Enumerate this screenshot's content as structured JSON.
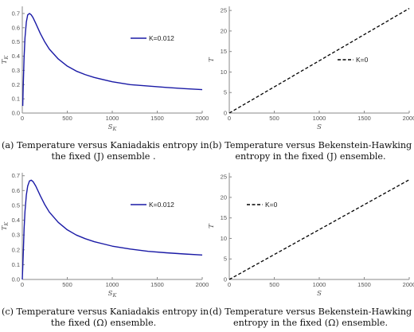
{
  "chart_data": [
    {
      "type": "line",
      "panel": "a",
      "xlabel": "S_K",
      "ylabel": "T_K",
      "xlim": [
        0,
        2000
      ],
      "ylim": [
        0,
        0.75
      ],
      "xticks": [
        0,
        500,
        1000,
        1500,
        2000
      ],
      "yticks": [
        0.0,
        0.1,
        0.2,
        0.3,
        0.4,
        0.5,
        0.6,
        0.7
      ],
      "ytick_labels": [
        "0.0",
        "0.1",
        "0.2",
        "0.3",
        "0.4",
        "0.5",
        "0.6",
        "0.7"
      ],
      "legend": "right",
      "series": [
        {
          "name": "K=0.012",
          "color": "#1a1aa6",
          "style": "solid",
          "x": [
            5,
            10,
            20,
            30,
            45,
            60,
            80,
            100,
            120,
            150,
            200,
            250,
            300,
            400,
            500,
            600,
            700,
            800,
            1000,
            1200,
            1400,
            1600,
            1800,
            2000
          ],
          "y": [
            0.05,
            0.18,
            0.39,
            0.53,
            0.64,
            0.69,
            0.7,
            0.69,
            0.67,
            0.63,
            0.56,
            0.5,
            0.45,
            0.38,
            0.33,
            0.295,
            0.27,
            0.25,
            0.22,
            0.2,
            0.19,
            0.18,
            0.172,
            0.165
          ]
        }
      ]
    },
    {
      "type": "line",
      "panel": "b",
      "xlabel": "S",
      "ylabel": "T",
      "xlim": [
        0,
        2000
      ],
      "ylim": [
        0,
        26
      ],
      "xticks": [
        0,
        500,
        1000,
        1500,
        2000
      ],
      "yticks": [
        0,
        5,
        10,
        15,
        20,
        25
      ],
      "ytick_labels": [
        "0",
        "5",
        "10",
        "15",
        "20",
        "25"
      ],
      "legend": "center-right",
      "series": [
        {
          "name": "K=0",
          "color": "#000000",
          "style": "dashed",
          "x": [
            0,
            2000
          ],
          "y": [
            0,
            25.5
          ]
        }
      ]
    },
    {
      "type": "line",
      "panel": "c",
      "xlabel": "S_K",
      "ylabel": "T_K",
      "xlim": [
        0,
        2000
      ],
      "ylim": [
        0,
        0.72
      ],
      "xticks": [
        0,
        500,
        1000,
        1500,
        2000
      ],
      "yticks": [
        0.0,
        0.1,
        0.2,
        0.3,
        0.4,
        0.5,
        0.6,
        0.7
      ],
      "ytick_labels": [
        "0.0",
        "0.1",
        "0.2",
        "0.3",
        "0.4",
        "0.5",
        "0.6",
        "0.7"
      ],
      "legend": "right",
      "series": [
        {
          "name": "K=0.012",
          "color": "#1a1aa6",
          "style": "solid",
          "x": [
            0,
            10,
            20,
            30,
            45,
            60,
            80,
            100,
            120,
            150,
            200,
            250,
            300,
            400,
            500,
            600,
            700,
            800,
            1000,
            1200,
            1400,
            1600,
            1800,
            2000
          ],
          "y": [
            0.0,
            0.16,
            0.34,
            0.46,
            0.57,
            0.63,
            0.665,
            0.67,
            0.66,
            0.63,
            0.565,
            0.505,
            0.455,
            0.385,
            0.335,
            0.3,
            0.275,
            0.255,
            0.225,
            0.205,
            0.19,
            0.18,
            0.172,
            0.165
          ]
        }
      ]
    },
    {
      "type": "line",
      "panel": "d",
      "xlabel": "S",
      "ylabel": "T",
      "xlim": [
        0,
        2000
      ],
      "ylim": [
        0,
        26
      ],
      "xticks": [
        0,
        500,
        1000,
        1500,
        2000
      ],
      "yticks": [
        0,
        5,
        10,
        15,
        20,
        25
      ],
      "ytick_labels": [
        "0",
        "5",
        "10",
        "15",
        "20",
        "25"
      ],
      "legend": "upper-center",
      "series": [
        {
          "name": "K=0",
          "color": "#000000",
          "style": "dashed",
          "x": [
            0,
            2000
          ],
          "y": [
            0,
            24.3
          ]
        }
      ]
    }
  ],
  "captions": {
    "a": {
      "line1": "(a) Temperature versus Kaniadakis entropy in",
      "line2": "the fixed (J) ensemble ."
    },
    "b": {
      "line1": "(b) Temperature versus Bekenstein-Hawking",
      "line2": "entropy in the fixed (J) ensemble."
    },
    "c": {
      "line1": "(c) Temperature versus Kaniadakis entropy in",
      "line2": "the fixed (Ω) ensemble."
    },
    "d": {
      "line1": "(d) Temperature versus Bekenstein-Hawking",
      "line2": "entropy in the fixed (Ω) ensemble."
    }
  }
}
